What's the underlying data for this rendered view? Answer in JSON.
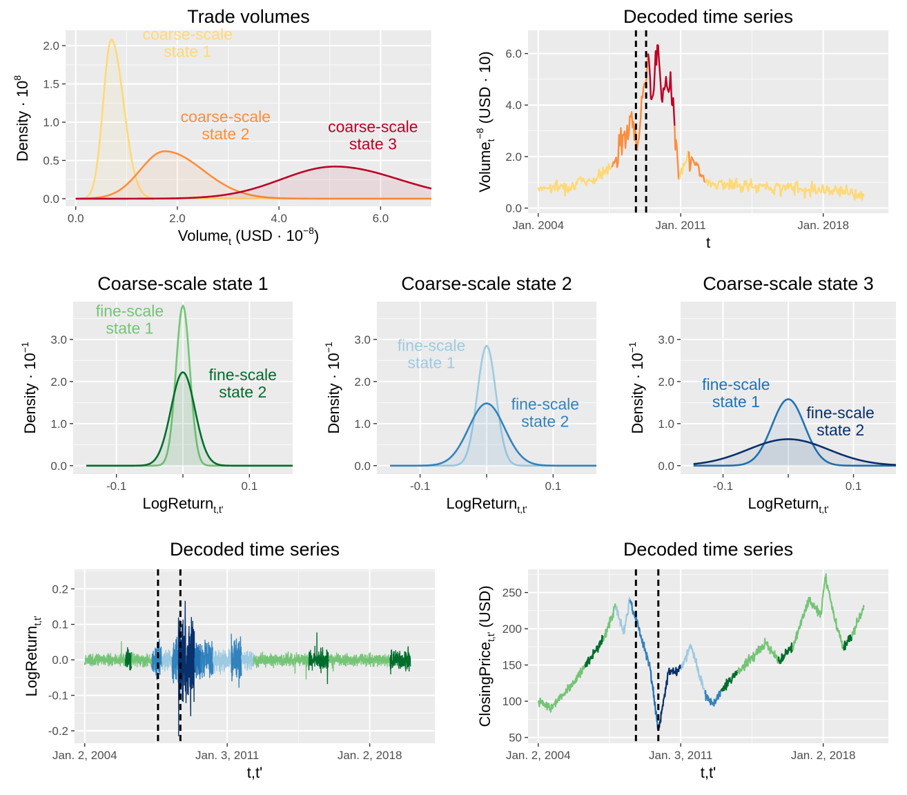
{
  "colors": {
    "coarse1": "#fed976",
    "coarse2": "#fd8d3c",
    "coarse3": "#bd0026",
    "fine_c1_s1": "#74c476",
    "fine_c1_s2": "#006d2c",
    "fine_c2_s1": "#9ecae1",
    "fine_c2_s2": "#3182bd",
    "fine_c3_s1": "#2171b5",
    "fine_c3_s2": "#08306b"
  },
  "chart_data": [
    {
      "id": "trade_volumes",
      "type": "line",
      "title": "Trade volumes",
      "xlabel": "Volume",
      "xlabel_sub": "t",
      "xlabel_rest": " (USD · 10",
      "xlabel_sup": "−8",
      "xlabel_end": ")",
      "ylabel": "Density · 10",
      "ylabel_sup": "8",
      "xlim": [
        -0.2,
        7.0
      ],
      "ylim": [
        -0.1,
        2.2
      ],
      "xticks": [
        0,
        2,
        4,
        6
      ],
      "xtick_labels": [
        "0.0",
        "2.0",
        "4.0",
        "6.0"
      ],
      "yticks": [
        0,
        0.5,
        1.0,
        1.5,
        2.0
      ],
      "ytick_labels": [
        "0.0",
        "0.5",
        "1.0",
        "1.5",
        "2.0"
      ],
      "series": [
        {
          "key": "s1",
          "color_key": "coarse1",
          "peak_x": 0.7,
          "peak_y": 2.08,
          "sd": 0.2
        },
        {
          "key": "s2",
          "color_key": "coarse2",
          "peak_x": 1.75,
          "peak_y": 0.62,
          "sd": 0.65
        },
        {
          "key": "s3",
          "color_key": "coarse3",
          "peak_x": 5.1,
          "peak_y": 0.42,
          "sd": 0.95
        }
      ],
      "annotations": [
        {
          "lines": [
            "coarse-scale",
            "state 1"
          ],
          "color_key": "coarse1",
          "x": 2.2,
          "y": 2.08
        },
        {
          "lines": [
            "coarse-scale",
            "state 2"
          ],
          "color_key": "coarse2",
          "x": 2.95,
          "y": 1.0
        },
        {
          "lines": [
            "coarse-scale",
            "state 3"
          ],
          "color_key": "coarse3",
          "x": 5.85,
          "y": 0.87
        }
      ]
    },
    {
      "id": "volume_decoded",
      "type": "line",
      "title": "Decoded time series",
      "xlabel": "t",
      "ylabel": "Volume",
      "ylabel_sub": "t",
      "ylabel_rest": " (USD · 10",
      "ylabel_sup": "−8",
      "ylabel_end": ")",
      "xlim": [
        2003.5,
        2021.2
      ],
      "ylim": [
        -0.2,
        6.9
      ],
      "xticks": [
        2004,
        2011,
        2018
      ],
      "xtick_labels": [
        "Jan. 2004",
        "Jan. 2011",
        "Jan. 2018"
      ],
      "yticks": [
        0,
        2,
        4,
        6
      ],
      "ytick_labels": [
        "0.0",
        "2.0",
        "4.0",
        "6.0"
      ],
      "vlines": [
        2008.8,
        2009.3
      ],
      "series": {
        "key_points": [
          [
            2004.0,
            0.8,
            "coarse1"
          ],
          [
            2005.5,
            0.85,
            "coarse1"
          ],
          [
            2006.9,
            1.2,
            "coarse1"
          ],
          [
            2007.6,
            1.6,
            "coarse2"
          ],
          [
            2008.2,
            2.8,
            "coarse2"
          ],
          [
            2008.5,
            3.6,
            "coarse2"
          ],
          [
            2008.9,
            2.6,
            "coarse2"
          ],
          [
            2009.4,
            6.0,
            "coarse3"
          ],
          [
            2009.6,
            4.3,
            "coarse3"
          ],
          [
            2009.85,
            6.35,
            "coarse3"
          ],
          [
            2010.1,
            4.1,
            "coarse3"
          ],
          [
            2010.5,
            5.3,
            "coarse3"
          ],
          [
            2010.7,
            3.2,
            "coarse2"
          ],
          [
            2010.9,
            1.1,
            "coarse1"
          ],
          [
            2011.4,
            2.2,
            "coarse2"
          ],
          [
            2012.2,
            1.0,
            "coarse1"
          ],
          [
            2014.0,
            0.85,
            "coarse1"
          ],
          [
            2016.0,
            0.8,
            "coarse1"
          ],
          [
            2019.0,
            0.7,
            "coarse1"
          ],
          [
            2020.0,
            0.45,
            "coarse1"
          ]
        ]
      }
    },
    {
      "id": "coarse_state_1",
      "type": "line",
      "title": "Coarse-scale state 1",
      "xlabel": "LogReturn",
      "xlabel_sub": "t,t'",
      "ylabel": "Density · 10",
      "ylabel_sup": "−1",
      "xlim": [
        -0.165,
        0.165
      ],
      "ylim": [
        -0.2,
        3.9
      ],
      "xticks": [
        -0.1,
        0.1
      ],
      "xtick_labels": [
        "-0.1",
        "0.1"
      ],
      "yticks": [
        0,
        1,
        2,
        3
      ],
      "ytick_labels": [
        "0.0",
        "1.0",
        "2.0",
        "3.0"
      ],
      "series": [
        {
          "key": "f1",
          "color_key": "fine_c1_s1",
          "peak_y": 3.8,
          "sd": 0.0105
        },
        {
          "key": "f2",
          "color_key": "fine_c1_s2",
          "peak_y": 2.22,
          "sd": 0.018
        }
      ],
      "annotations": [
        {
          "lines": [
            "fine-scale",
            "state 1"
          ],
          "color_key": "fine_c1_s1",
          "x": -0.08,
          "y": 3.55
        },
        {
          "lines": [
            "fine-scale",
            "state 2"
          ],
          "color_key": "fine_c1_s2",
          "x": 0.09,
          "y": 2.03
        }
      ]
    },
    {
      "id": "coarse_state_2",
      "type": "line",
      "title": "Coarse-scale state 2",
      "xlabel": "LogReturn",
      "xlabel_sub": "t,t'",
      "ylabel": "Density · 10",
      "ylabel_sup": "−1",
      "xlim": [
        -0.165,
        0.165
      ],
      "ylim": [
        -0.2,
        3.9
      ],
      "xticks": [
        -0.1,
        0.1
      ],
      "xtick_labels": [
        "-0.1",
        "0.1"
      ],
      "yticks": [
        0,
        1,
        2,
        3
      ],
      "ytick_labels": [
        "0.0",
        "1.0",
        "2.0",
        "3.0"
      ],
      "series": [
        {
          "key": "f1",
          "color_key": "fine_c2_s1",
          "peak_y": 2.85,
          "sd": 0.014
        },
        {
          "key": "f2",
          "color_key": "fine_c2_s2",
          "peak_y": 1.48,
          "sd": 0.027
        }
      ],
      "annotations": [
        {
          "lines": [
            "fine-scale",
            "state 1"
          ],
          "color_key": "fine_c2_s1",
          "x": -0.083,
          "y": 2.73
        },
        {
          "lines": [
            "fine-scale",
            "state 2"
          ],
          "color_key": "fine_c2_s2",
          "x": 0.088,
          "y": 1.33
        }
      ]
    },
    {
      "id": "coarse_state_3",
      "type": "line",
      "title": "Coarse-scale state 3",
      "xlabel": "LogReturn",
      "xlabel_sub": "t,t'",
      "ylabel": "Density · 10",
      "ylabel_sup": "−1",
      "xlim": [
        -0.165,
        0.165
      ],
      "ylim": [
        -0.2,
        3.9
      ],
      "xticks": [
        -0.1,
        0.1
      ],
      "xtick_labels": [
        "-0.1",
        "0.1"
      ],
      "yticks": [
        0,
        1,
        2,
        3
      ],
      "ytick_labels": [
        "0.0",
        "1.0",
        "2.0",
        "3.0"
      ],
      "series": [
        {
          "key": "f1",
          "color_key": "fine_c3_s1",
          "peak_y": 1.58,
          "sd": 0.025
        },
        {
          "key": "f2",
          "color_key": "fine_c3_s2",
          "peak_y": 0.63,
          "sd": 0.062
        }
      ],
      "annotations": [
        {
          "lines": [
            "fine-scale",
            "state 1"
          ],
          "color_key": "fine_c3_s1",
          "x": -0.08,
          "y": 1.8
        },
        {
          "lines": [
            "fine-scale",
            "state 2"
          ],
          "color_key": "fine_c3_s2",
          "x": 0.08,
          "y": 1.13
        }
      ]
    },
    {
      "id": "logreturn_decoded",
      "type": "line",
      "title": "Decoded time series",
      "xlabel": "t,t'",
      "ylabel": "LogReturn",
      "ylabel_sub": "t,t'",
      "xlim": [
        2003.5,
        2021.2
      ],
      "ylim": [
        -0.235,
        0.255
      ],
      "xticks": [
        2004,
        2011,
        2018
      ],
      "xtick_labels": [
        "Jan. 2, 2004",
        "Jan. 3, 2011",
        "Jan. 2, 2018"
      ],
      "yticks": [
        -0.2,
        -0.1,
        0,
        0.1,
        0.2
      ],
      "ytick_labels": [
        "-0.2",
        "-0.1",
        "0.0",
        "0.1",
        "0.2"
      ],
      "vlines": [
        2007.6,
        2008.7
      ],
      "segments": [
        [
          2004.0,
          2006.0,
          "fine_c1_s1",
          0.012
        ],
        [
          2006.0,
          2006.3,
          "fine_c1_s2",
          0.02
        ],
        [
          2006.3,
          2007.3,
          "fine_c1_s1",
          0.012
        ],
        [
          2007.3,
          2007.8,
          "fine_c2_s2",
          0.035
        ],
        [
          2007.8,
          2008.3,
          "fine_c2_s1",
          0.02
        ],
        [
          2008.3,
          2008.6,
          "fine_c2_s2",
          0.05
        ],
        [
          2008.6,
          2009.4,
          "fine_c3_s2",
          0.085
        ],
        [
          2009.4,
          2009.7,
          "fine_c3_s1",
          0.04
        ],
        [
          2009.7,
          2010.3,
          "fine_c2_s2",
          0.035
        ],
        [
          2010.3,
          2011.2,
          "fine_c2_s1",
          0.02
        ],
        [
          2011.2,
          2011.7,
          "fine_c2_s2",
          0.045
        ],
        [
          2011.7,
          2012.3,
          "fine_c2_s1",
          0.02
        ],
        [
          2012.3,
          2015.0,
          "fine_c1_s1",
          0.012
        ],
        [
          2015.0,
          2016.0,
          "fine_c1_s2",
          0.02
        ],
        [
          2016.0,
          2019.0,
          "fine_c1_s1",
          0.012
        ],
        [
          2019.0,
          2020.0,
          "fine_c1_s2",
          0.02
        ]
      ]
    },
    {
      "id": "closing_price_decoded",
      "type": "line",
      "title": "Decoded time series",
      "xlabel": "t,t'",
      "ylabel": "ClosingPrice",
      "ylabel_sub": "t,t'",
      "ylabel_rest": " (USD)",
      "xlim": [
        2003.5,
        2021.2
      ],
      "ylim": [
        42,
        282
      ],
      "xticks": [
        2004,
        2011,
        2018
      ],
      "xtick_labels": [
        "Jan. 2, 2004",
        "Jan. 3, 2011",
        "Jan. 2, 2018"
      ],
      "yticks": [
        50,
        100,
        150,
        200,
        250
      ],
      "ytick_labels": [
        "50",
        "100",
        "150",
        "200",
        "250"
      ],
      "vlines": [
        2008.8,
        2009.9
      ],
      "key_points": [
        [
          2004.0,
          100,
          "fine_c1_s1"
        ],
        [
          2004.6,
          90,
          "fine_c1_s1"
        ],
        [
          2005.5,
          118,
          "fine_c1_s1"
        ],
        [
          2006.3,
          148,
          "fine_c1_s2"
        ],
        [
          2007.2,
          185,
          "fine_c1_s1"
        ],
        [
          2007.8,
          230,
          "fine_c2_s1"
        ],
        [
          2008.2,
          195,
          "fine_c2_s1"
        ],
        [
          2008.5,
          240,
          "fine_c2_s2"
        ],
        [
          2008.9,
          205,
          "fine_c2_s2"
        ],
        [
          2009.5,
          145,
          "fine_c3_s1"
        ],
        [
          2009.9,
          60,
          "fine_c3_s2"
        ],
        [
          2010.4,
          140,
          "fine_c3_s2"
        ],
        [
          2011.0,
          145,
          "fine_c2_s1"
        ],
        [
          2011.5,
          175,
          "fine_c2_s1"
        ],
        [
          2012.2,
          110,
          "fine_c2_s2"
        ],
        [
          2012.6,
          95,
          "fine_c2_s2"
        ],
        [
          2013.0,
          115,
          "fine_c1_s2"
        ],
        [
          2013.8,
          140,
          "fine_c1_s1"
        ],
        [
          2014.5,
          160,
          "fine_c1_s1"
        ],
        [
          2015.2,
          180,
          "fine_c1_s1"
        ],
        [
          2015.8,
          155,
          "fine_c1_s2"
        ],
        [
          2016.5,
          175,
          "fine_c1_s1"
        ],
        [
          2017.3,
          240,
          "fine_c1_s1"
        ],
        [
          2017.9,
          220,
          "fine_c1_s1"
        ],
        [
          2018.1,
          272,
          "fine_c1_s1"
        ],
        [
          2018.6,
          210,
          "fine_c1_s1"
        ],
        [
          2019.0,
          175,
          "fine_c1_s2"
        ],
        [
          2019.4,
          190,
          "fine_c1_s1"
        ],
        [
          2020.0,
          230,
          "fine_c1_s1"
        ]
      ]
    }
  ]
}
